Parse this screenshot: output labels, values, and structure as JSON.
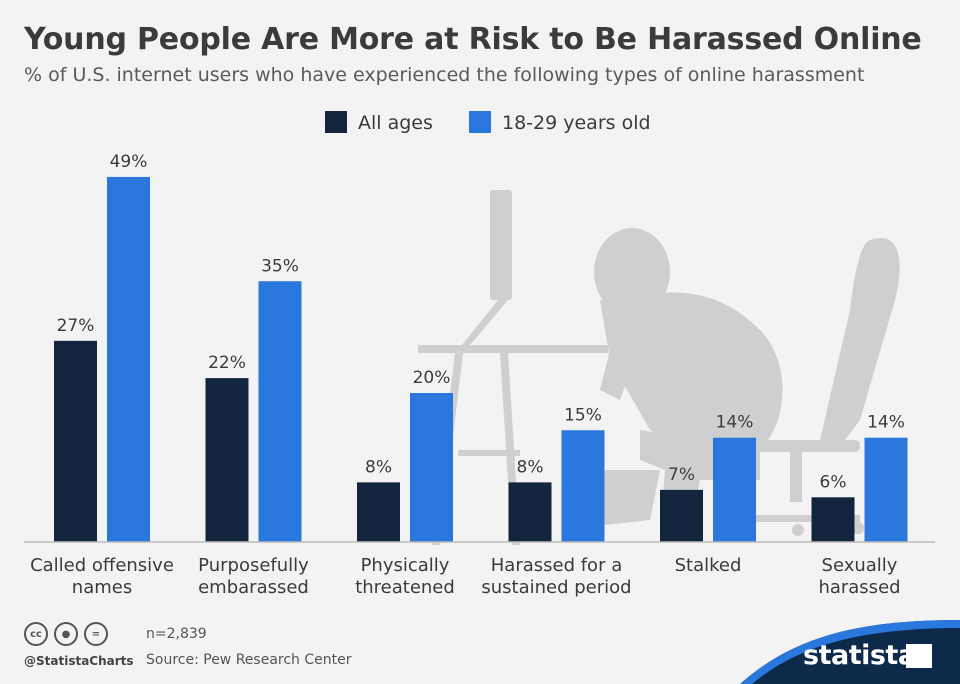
{
  "header": {
    "title": "Young People Are More at Risk to Be Harassed Online",
    "subtitle": "% of U.S. internet users who have experienced the following types of online harassment"
  },
  "colors": {
    "all_ages": "#12253d",
    "young": "#2a78dd",
    "axis": "#bbbbbb",
    "label": "#3b3b3b",
    "silhouette": "#cfcfcf",
    "brand_band": "#0d2a4a"
  },
  "chart_data": {
    "type": "bar",
    "categories": [
      [
        "Called offensive",
        "names"
      ],
      [
        "Purposefully",
        "embarassed"
      ],
      [
        "Physically",
        "threatened"
      ],
      [
        "Harassed for a",
        "sustained period"
      ],
      [
        "Stalked"
      ],
      [
        "Sexually",
        "harassed"
      ]
    ],
    "series": [
      {
        "name": "All ages",
        "values": [
          27,
          22,
          8,
          8,
          7,
          6
        ],
        "labels": [
          "27%",
          "22%",
          "8%",
          "8%",
          "7%",
          "6%"
        ]
      },
      {
        "name": "18-29 years old",
        "values": [
          49,
          35,
          20,
          15,
          14,
          14
        ],
        "labels": [
          "49%",
          "35%",
          "20%",
          "15%",
          "14%",
          "14%"
        ]
      }
    ],
    "ylim": [
      0,
      49
    ],
    "grid": false,
    "legend_position": "top-center"
  },
  "footer": {
    "note": "n=2,839",
    "source": "Source: Pew Research Center",
    "handle": "@StatistaCharts",
    "brand": "statista",
    "cc_icons": [
      "cc-icon",
      "by-icon",
      "nd-icon"
    ]
  }
}
